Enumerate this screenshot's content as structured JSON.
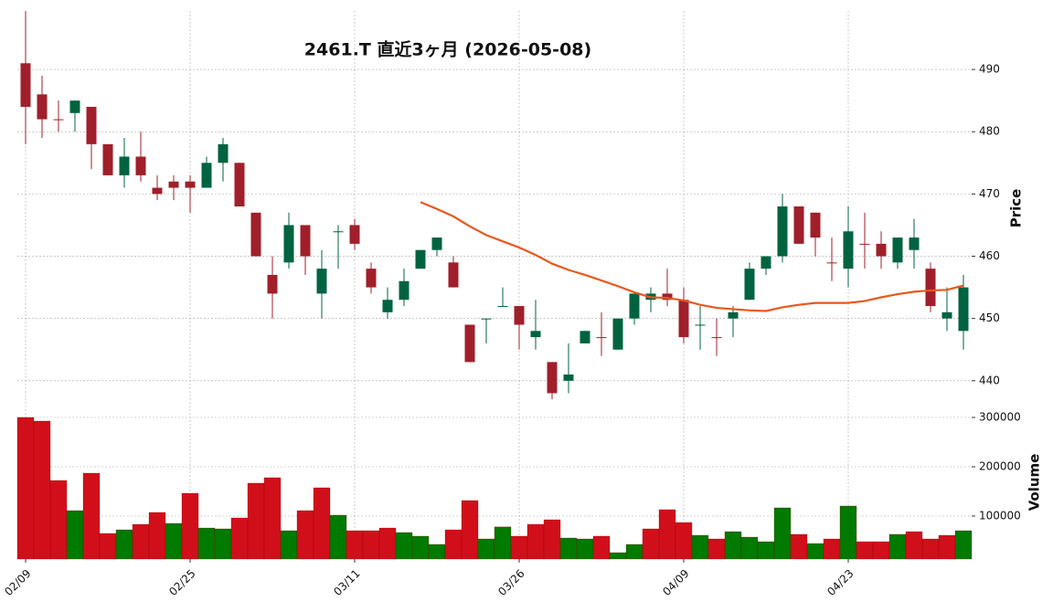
{
  "chart_data": {
    "type": "candlestick",
    "title": "2461.T  直近3ヶ月  (2026-05-08)",
    "ylabel": "Price",
    "grid": true,
    "up_color": "#006340",
    "down_color": "#a01f2a",
    "categories": [
      "02/09",
      null,
      null,
      null,
      null,
      null,
      null,
      null,
      null,
      null,
      "02/25",
      null,
      null,
      null,
      null,
      null,
      null,
      null,
      null,
      null,
      "03/11",
      null,
      null,
      null,
      null,
      null,
      null,
      null,
      null,
      null,
      "03/26",
      null,
      null,
      null,
      null,
      null,
      null,
      null,
      null,
      null,
      "04/09",
      null,
      null,
      null,
      null,
      null,
      null,
      null,
      null,
      null,
      "04/23",
      null,
      null,
      null,
      null,
      null,
      null,
      null
    ],
    "open": [
      491,
      486,
      482,
      483,
      484,
      478,
      473,
      476,
      471,
      472,
      472,
      471,
      475,
      475,
      467,
      457,
      459,
      465,
      454,
      464,
      465,
      458,
      451,
      453,
      458,
      461,
      459,
      449,
      450,
      452,
      452,
      447,
      443,
      440,
      446,
      447,
      445,
      450,
      453,
      454,
      453,
      449,
      447,
      450,
      453,
      458,
      460,
      468,
      467,
      459,
      458,
      462,
      462,
      459,
      461,
      458,
      450,
      448
    ],
    "high": [
      499.4,
      489,
      485,
      485,
      484,
      478,
      479,
      480,
      473,
      473,
      473,
      476,
      479,
      475,
      467,
      460,
      467,
      465,
      461,
      465,
      466,
      459,
      455,
      458,
      461,
      463,
      460,
      449,
      450,
      455,
      452,
      453,
      443,
      446,
      448,
      451,
      450,
      454,
      455,
      458,
      455,
      452,
      450,
      452,
      459,
      460,
      470,
      468,
      467,
      463,
      468,
      467,
      464,
      463,
      466,
      459,
      455,
      457
    ],
    "low": [
      478,
      479,
      480,
      480,
      474,
      473,
      471,
      472,
      469,
      469,
      467,
      471,
      472,
      468,
      460,
      450,
      458,
      457,
      450,
      458,
      461,
      454,
      450,
      452,
      458,
      460,
      455,
      443,
      446,
      452,
      445,
      445,
      437,
      438,
      446,
      444,
      445,
      449,
      451,
      452,
      446,
      445,
      444,
      447,
      453,
      457,
      459,
      462,
      460,
      456,
      455,
      458,
      458,
      458,
      458,
      451,
      448,
      445
    ],
    "close": [
      484,
      482,
      482,
      485,
      478,
      473,
      476,
      473,
      470,
      471,
      471,
      475,
      478,
      468,
      460,
      454,
      465,
      460,
      458,
      464,
      462,
      455,
      453,
      456,
      461,
      463,
      455,
      443,
      450,
      452,
      449,
      448,
      438,
      441,
      448,
      447,
      450,
      454,
      454,
      453,
      447,
      449,
      447,
      451,
      458,
      460,
      468,
      462,
      463,
      459,
      464,
      462,
      460,
      463,
      463,
      452,
      451,
      455
    ],
    "ylim": [
      436.6,
      499.4
    ],
    "yticks": [
      440,
      450,
      460,
      470,
      480,
      490
    ],
    "ma": {
      "color": "#e8581c",
      "values": [
        null,
        null,
        null,
        null,
        null,
        null,
        null,
        null,
        null,
        null,
        null,
        null,
        null,
        null,
        null,
        null,
        null,
        null,
        null,
        null,
        null,
        null,
        null,
        null,
        468.7,
        467.6,
        466.4,
        464.8,
        463.4,
        462.4,
        461.4,
        460.2,
        458.8,
        457.8,
        457.0,
        456.1,
        455.2,
        454.2,
        453.4,
        453.3,
        452.9,
        452.2,
        451.7,
        451.5,
        451.3,
        451.2,
        451.8,
        452.2,
        452.5,
        452.5,
        452.5,
        452.8,
        453.4,
        453.9,
        454.3,
        454.5,
        454.6,
        455.3
      ]
    },
    "volume": {
      "ylabel": "Volume",
      "ylim": [
        13000,
        318500
      ],
      "yticks": [
        100000,
        200000,
        300000
      ],
      "values": [
        300000,
        292600,
        172200,
        111100,
        187000,
        64800,
        72200,
        83300,
        107400,
        85200,
        146300,
        75900,
        74100,
        96300,
        166700,
        177800,
        70400,
        111100,
        157400,
        101900,
        70400,
        70400,
        75900,
        66700,
        59300,
        42600,
        72200,
        131500,
        53700,
        78000,
        59300,
        83300,
        92600,
        55600,
        53700,
        59300,
        25900,
        42600,
        74100,
        113000,
        87000,
        61100,
        53700,
        68500,
        57400,
        48100,
        116700,
        63000,
        44400,
        53700,
        120400,
        48100,
        48100,
        63000,
        68500,
        53700,
        61100,
        70400
      ],
      "colors": [
        "#d10f1a",
        "#d10f1a",
        "#d10f1a",
        "#007a00",
        "#d10f1a",
        "#d10f1a",
        "#007a00",
        "#d10f1a",
        "#d10f1a",
        "#007a00",
        "#d10f1a",
        "#007a00",
        "#007a00",
        "#d10f1a",
        "#d10f1a",
        "#d10f1a",
        "#007a00",
        "#d10f1a",
        "#d10f1a",
        "#007a00",
        "#d10f1a",
        "#d10f1a",
        "#d10f1a",
        "#007a00",
        "#007a00",
        "#007a00",
        "#d10f1a",
        "#d10f1a",
        "#007a00",
        "#007a00",
        "#d10f1a",
        "#d10f1a",
        "#d10f1a",
        "#007a00",
        "#007a00",
        "#d10f1a",
        "#007a00",
        "#007a00",
        "#d10f1a",
        "#d10f1a",
        "#d10f1a",
        "#007a00",
        "#d10f1a",
        "#007a00",
        "#007a00",
        "#007a00",
        "#007a00",
        "#d10f1a",
        "#007a00",
        "#d10f1a",
        "#007a00",
        "#d10f1a",
        "#d10f1a",
        "#007a00",
        "#d10f1a",
        "#d10f1a",
        "#d10f1a",
        "#007a00"
      ]
    }
  }
}
